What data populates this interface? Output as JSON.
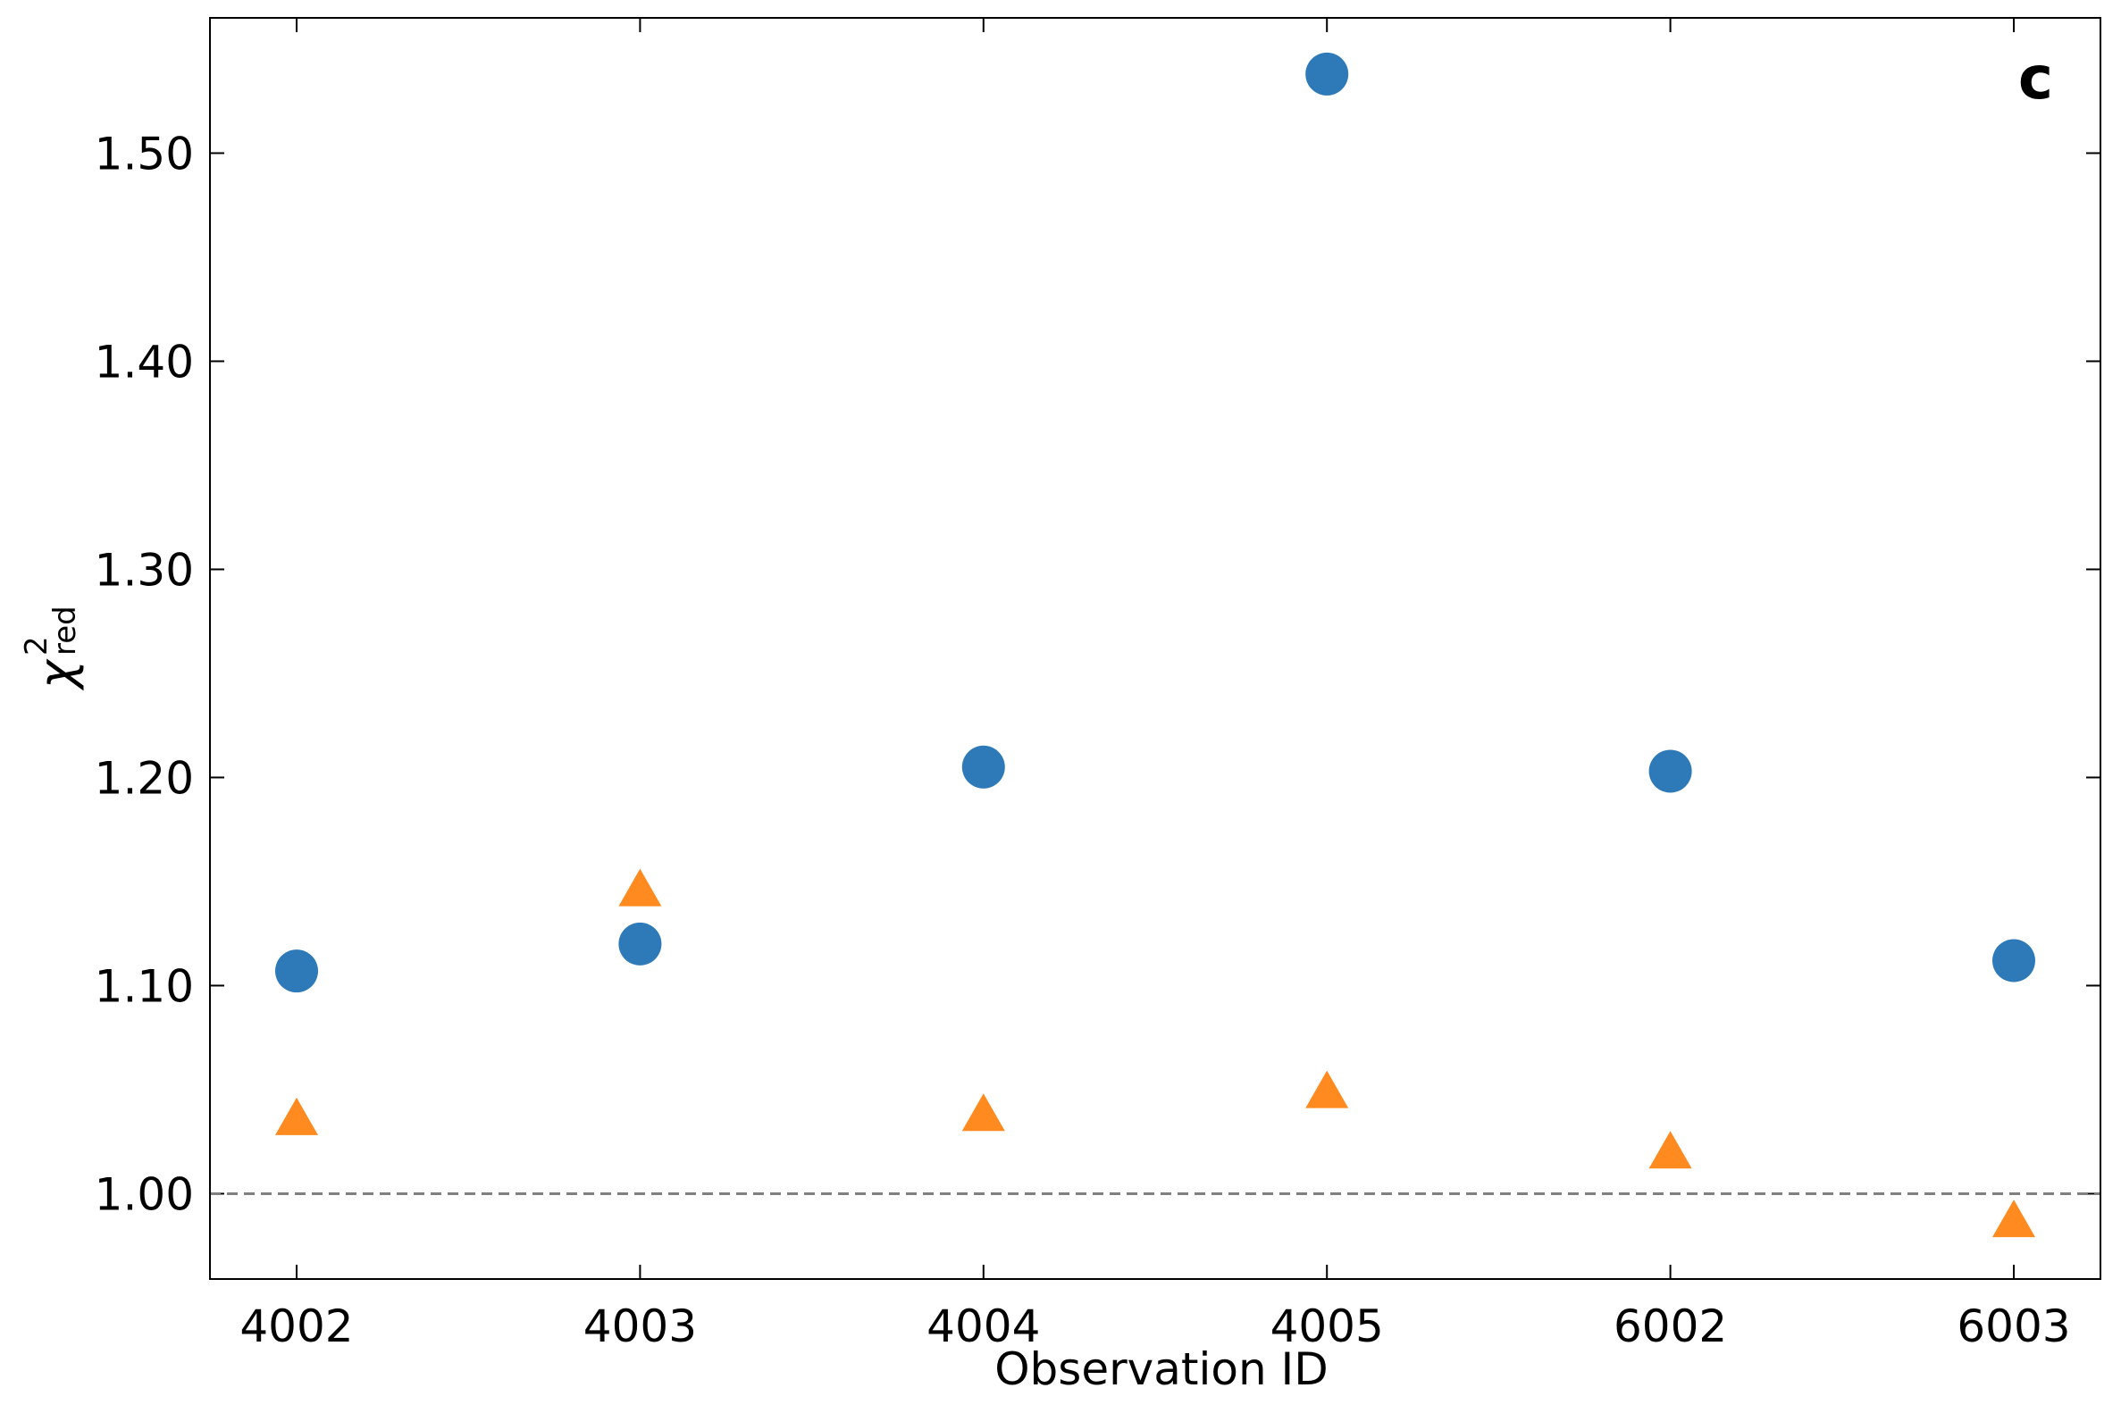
{
  "chart_data": {
    "type": "scatter",
    "annotation": "c",
    "xlabel": "Observation ID",
    "ylabel": {
      "symbol": "χ",
      "sup": "2",
      "sub": "red"
    },
    "categories": [
      "4002",
      "4003",
      "4004",
      "4005",
      "6002",
      "6003"
    ],
    "series": [
      {
        "color": "#2e7ab8",
        "marker": "circle",
        "values": [
          1.107,
          1.12,
          1.205,
          1.538,
          1.203,
          1.112
        ]
      },
      {
        "color": "#ff8a1f",
        "marker": "triangle",
        "values": [
          1.035,
          1.145,
          1.037,
          1.048,
          1.019,
          0.986
        ]
      }
    ],
    "ylim": [
      0.959,
      1.565
    ],
    "yticks": [
      {
        "value": 1.0,
        "label": "1.00"
      },
      {
        "value": 1.1,
        "label": "1.10"
      },
      {
        "value": 1.2,
        "label": "1.20"
      },
      {
        "value": 1.3,
        "label": "1.30"
      },
      {
        "value": 1.4,
        "label": "1.40"
      },
      {
        "value": 1.5,
        "label": "1.50"
      }
    ],
    "hline": 1.0,
    "hline_color": "#808080",
    "grid": false
  }
}
